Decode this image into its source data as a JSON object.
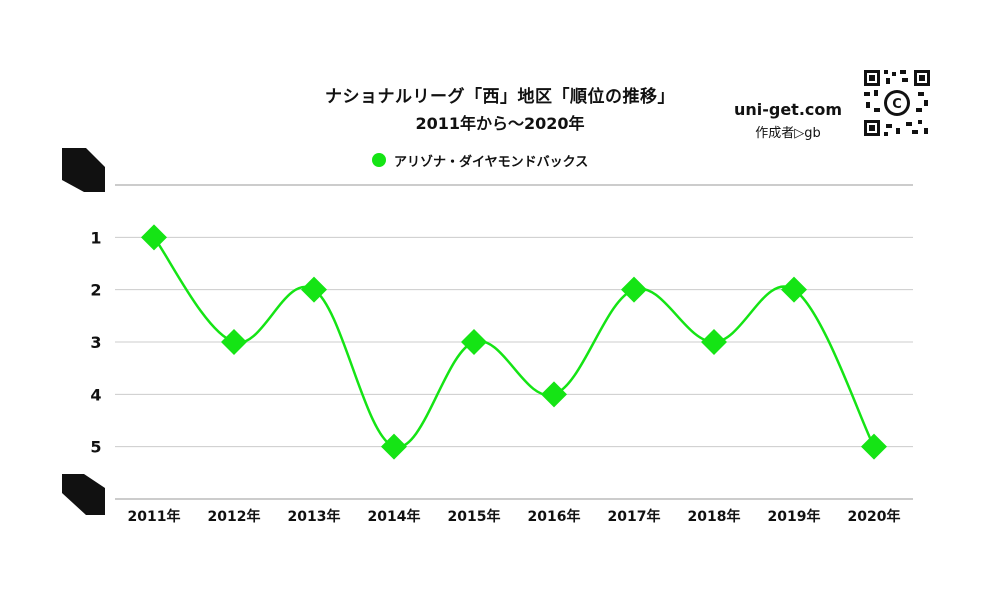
{
  "header": {
    "title": "ナショナルリーグ「西」地区「順位の推移」",
    "subtitle": "2011年から～2020年"
  },
  "brand": {
    "site": "uni-get.com",
    "author": "作成者▷gb",
    "qr_icon": "qr-code-icon"
  },
  "colors": {
    "series": "#15e415",
    "grid": "#cccccc",
    "text": "#111111"
  },
  "chart_data": {
    "type": "line",
    "title": "ナショナルリーグ「西」地区「順位の推移」",
    "subtitle": "2011年から～2020年",
    "categories": [
      "2011年",
      "2012年",
      "2013年",
      "2014年",
      "2015年",
      "2016年",
      "2017年",
      "2018年",
      "2019年",
      "2020年"
    ],
    "series": [
      {
        "name": "アリゾナ・ダイヤモンドバックス",
        "values": [
          1,
          3,
          2,
          5,
          3,
          4,
          2,
          3,
          2,
          5
        ]
      }
    ],
    "yticks": [
      "1",
      "2",
      "3",
      "4",
      "5"
    ],
    "ylim": [
      0,
      6
    ],
    "y_inverted": true,
    "grid": true,
    "legend": "top-center",
    "marker": "diamond",
    "smooth": true
  }
}
